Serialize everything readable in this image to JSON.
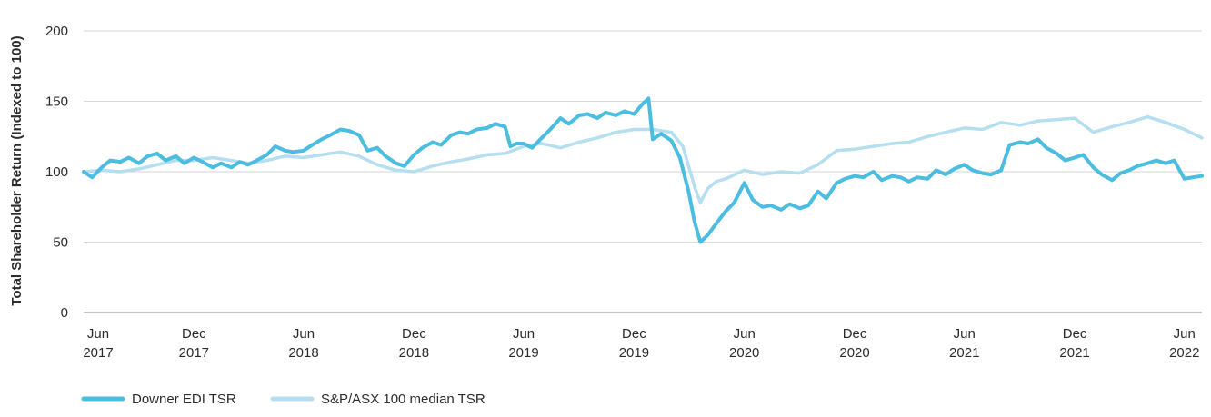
{
  "chart_data": {
    "type": "line",
    "title": "",
    "ylabel": "Total Shareholder Return (Indexed to 100)",
    "xlabel": "",
    "ylim": [
      0,
      200
    ],
    "yticks": [
      0,
      50,
      100,
      150,
      200
    ],
    "xlim": [
      "2017-06-01",
      "2022-06-30"
    ],
    "xticks": [
      {
        "date": "2017-06-01",
        "month": "Jun",
        "year": "2017"
      },
      {
        "date": "2017-12-01",
        "month": "Dec",
        "year": "2017"
      },
      {
        "date": "2018-06-01",
        "month": "Jun",
        "year": "2018"
      },
      {
        "date": "2018-12-01",
        "month": "Dec",
        "year": "2018"
      },
      {
        "date": "2019-06-01",
        "month": "Jun",
        "year": "2019"
      },
      {
        "date": "2019-12-01",
        "month": "Dec",
        "year": "2019"
      },
      {
        "date": "2020-06-01",
        "month": "Jun",
        "year": "2020"
      },
      {
        "date": "2020-12-01",
        "month": "Dec",
        "year": "2020"
      },
      {
        "date": "2021-06-01",
        "month": "Jun",
        "year": "2021"
      },
      {
        "date": "2021-12-01",
        "month": "Dec",
        "year": "2021"
      },
      {
        "date": "2022-06-01",
        "month": "Jun",
        "year": "2022"
      }
    ],
    "grid": "horizontal",
    "legend_position": "bottom-left",
    "series": [
      {
        "name": "Downer EDI TSR",
        "color": "#4bbde0",
        "points": [
          [
            "2017-06-01",
            100
          ],
          [
            "2017-06-15",
            96
          ],
          [
            "2017-07-01",
            103
          ],
          [
            "2017-07-15",
            108
          ],
          [
            "2017-08-01",
            107
          ],
          [
            "2017-08-15",
            110
          ],
          [
            "2017-09-01",
            106
          ],
          [
            "2017-09-15",
            111
          ],
          [
            "2017-10-01",
            113
          ],
          [
            "2017-10-15",
            108
          ],
          [
            "2017-11-01",
            111
          ],
          [
            "2017-11-15",
            106
          ],
          [
            "2017-12-01",
            110
          ],
          [
            "2017-12-15",
            107
          ],
          [
            "2018-01-01",
            103
          ],
          [
            "2018-01-15",
            106
          ],
          [
            "2018-02-01",
            103
          ],
          [
            "2018-02-15",
            107
          ],
          [
            "2018-03-01",
            105
          ],
          [
            "2018-03-15",
            108
          ],
          [
            "2018-04-01",
            112
          ],
          [
            "2018-04-15",
            118
          ],
          [
            "2018-05-01",
            115
          ],
          [
            "2018-05-15",
            114
          ],
          [
            "2018-06-01",
            115
          ],
          [
            "2018-06-15",
            119
          ],
          [
            "2018-07-01",
            123
          ],
          [
            "2018-07-15",
            126
          ],
          [
            "2018-08-01",
            130
          ],
          [
            "2018-08-15",
            129
          ],
          [
            "2018-09-01",
            126
          ],
          [
            "2018-09-15",
            115
          ],
          [
            "2018-10-01",
            117
          ],
          [
            "2018-10-15",
            111
          ],
          [
            "2018-11-01",
            106
          ],
          [
            "2018-11-15",
            104
          ],
          [
            "2018-12-01",
            112
          ],
          [
            "2018-12-15",
            117
          ],
          [
            "2019-01-01",
            121
          ],
          [
            "2019-01-15",
            119
          ],
          [
            "2019-02-01",
            126
          ],
          [
            "2019-02-15",
            128
          ],
          [
            "2019-03-01",
            127
          ],
          [
            "2019-03-15",
            130
          ],
          [
            "2019-04-01",
            131
          ],
          [
            "2019-04-15",
            134
          ],
          [
            "2019-05-01",
            132
          ],
          [
            "2019-05-10",
            118
          ],
          [
            "2019-05-20",
            120
          ],
          [
            "2019-06-01",
            120
          ],
          [
            "2019-06-15",
            117
          ],
          [
            "2019-07-01",
            124
          ],
          [
            "2019-07-15",
            130
          ],
          [
            "2019-08-01",
            138
          ],
          [
            "2019-08-15",
            134
          ],
          [
            "2019-09-01",
            140
          ],
          [
            "2019-09-15",
            141
          ],
          [
            "2019-10-01",
            138
          ],
          [
            "2019-10-15",
            142
          ],
          [
            "2019-11-01",
            140
          ],
          [
            "2019-11-15",
            143
          ],
          [
            "2019-12-01",
            141
          ],
          [
            "2019-12-15",
            148
          ],
          [
            "2019-12-25",
            152
          ],
          [
            "2020-01-01",
            123
          ],
          [
            "2020-01-15",
            127
          ],
          [
            "2020-02-01",
            122
          ],
          [
            "2020-02-15",
            110
          ],
          [
            "2020-03-01",
            85
          ],
          [
            "2020-03-10",
            65
          ],
          [
            "2020-03-20",
            50
          ],
          [
            "2020-04-01",
            55
          ],
          [
            "2020-04-15",
            63
          ],
          [
            "2020-05-01",
            72
          ],
          [
            "2020-05-15",
            78
          ],
          [
            "2020-06-01",
            92
          ],
          [
            "2020-06-15",
            80
          ],
          [
            "2020-07-01",
            75
          ],
          [
            "2020-07-15",
            76
          ],
          [
            "2020-08-01",
            73
          ],
          [
            "2020-08-15",
            77
          ],
          [
            "2020-09-01",
            74
          ],
          [
            "2020-09-15",
            76
          ],
          [
            "2020-10-01",
            86
          ],
          [
            "2020-10-15",
            81
          ],
          [
            "2020-11-01",
            92
          ],
          [
            "2020-11-15",
            95
          ],
          [
            "2020-12-01",
            97
          ],
          [
            "2020-12-15",
            96
          ],
          [
            "2021-01-01",
            100
          ],
          [
            "2021-01-15",
            94
          ],
          [
            "2021-02-01",
            97
          ],
          [
            "2021-02-15",
            96
          ],
          [
            "2021-03-01",
            93
          ],
          [
            "2021-03-15",
            96
          ],
          [
            "2021-04-01",
            95
          ],
          [
            "2021-04-15",
            101
          ],
          [
            "2021-05-01",
            98
          ],
          [
            "2021-05-15",
            102
          ],
          [
            "2021-06-01",
            105
          ],
          [
            "2021-06-15",
            101
          ],
          [
            "2021-07-01",
            99
          ],
          [
            "2021-07-15",
            98
          ],
          [
            "2021-08-01",
            101
          ],
          [
            "2021-08-15",
            119
          ],
          [
            "2021-09-01",
            121
          ],
          [
            "2021-09-15",
            120
          ],
          [
            "2021-10-01",
            123
          ],
          [
            "2021-10-15",
            117
          ],
          [
            "2021-11-01",
            113
          ],
          [
            "2021-11-15",
            108
          ],
          [
            "2021-12-01",
            110
          ],
          [
            "2021-12-15",
            112
          ],
          [
            "2022-01-01",
            103
          ],
          [
            "2022-01-15",
            98
          ],
          [
            "2022-02-01",
            94
          ],
          [
            "2022-02-15",
            99
          ],
          [
            "2022-03-01",
            101
          ],
          [
            "2022-03-15",
            104
          ],
          [
            "2022-04-01",
            106
          ],
          [
            "2022-04-15",
            108
          ],
          [
            "2022-05-01",
            106
          ],
          [
            "2022-05-15",
            108
          ],
          [
            "2022-06-01",
            95
          ],
          [
            "2022-06-15",
            96
          ],
          [
            "2022-06-30",
            97
          ]
        ]
      },
      {
        "name": "S&P/ASX 100 median TSR",
        "color": "#b5def1",
        "points": [
          [
            "2017-06-01",
            100
          ],
          [
            "2017-07-01",
            101
          ],
          [
            "2017-08-01",
            100
          ],
          [
            "2017-09-01",
            102
          ],
          [
            "2017-10-01",
            105
          ],
          [
            "2017-11-01",
            108
          ],
          [
            "2017-12-01",
            108
          ],
          [
            "2018-01-01",
            110
          ],
          [
            "2018-02-01",
            108
          ],
          [
            "2018-03-01",
            106
          ],
          [
            "2018-04-01",
            108
          ],
          [
            "2018-05-01",
            111
          ],
          [
            "2018-06-01",
            110
          ],
          [
            "2018-07-01",
            112
          ],
          [
            "2018-08-01",
            114
          ],
          [
            "2018-09-01",
            111
          ],
          [
            "2018-10-01",
            105
          ],
          [
            "2018-11-01",
            101
          ],
          [
            "2018-12-01",
            100
          ],
          [
            "2019-01-01",
            104
          ],
          [
            "2019-02-01",
            107
          ],
          [
            "2019-03-01",
            109
          ],
          [
            "2019-04-01",
            112
          ],
          [
            "2019-05-01",
            113
          ],
          [
            "2019-06-01",
            118
          ],
          [
            "2019-07-01",
            120
          ],
          [
            "2019-08-01",
            117
          ],
          [
            "2019-09-01",
            121
          ],
          [
            "2019-10-01",
            124
          ],
          [
            "2019-11-01",
            128
          ],
          [
            "2019-12-01",
            130
          ],
          [
            "2020-01-01",
            130
          ],
          [
            "2020-02-01",
            128
          ],
          [
            "2020-02-20",
            118
          ],
          [
            "2020-03-10",
            90
          ],
          [
            "2020-03-20",
            78
          ],
          [
            "2020-04-01",
            88
          ],
          [
            "2020-04-15",
            93
          ],
          [
            "2020-05-01",
            95
          ],
          [
            "2020-06-01",
            101
          ],
          [
            "2020-07-01",
            98
          ],
          [
            "2020-08-01",
            100
          ],
          [
            "2020-09-01",
            99
          ],
          [
            "2020-10-01",
            105
          ],
          [
            "2020-11-01",
            115
          ],
          [
            "2020-12-01",
            116
          ],
          [
            "2021-01-01",
            118
          ],
          [
            "2021-02-01",
            120
          ],
          [
            "2021-03-01",
            121
          ],
          [
            "2021-04-01",
            125
          ],
          [
            "2021-05-01",
            128
          ],
          [
            "2021-06-01",
            131
          ],
          [
            "2021-07-01",
            130
          ],
          [
            "2021-08-01",
            135
          ],
          [
            "2021-09-01",
            133
          ],
          [
            "2021-10-01",
            136
          ],
          [
            "2021-11-01",
            137
          ],
          [
            "2021-12-01",
            138
          ],
          [
            "2022-01-01",
            128
          ],
          [
            "2022-02-01",
            132
          ],
          [
            "2022-03-01",
            135
          ],
          [
            "2022-04-01",
            139
          ],
          [
            "2022-05-01",
            135
          ],
          [
            "2022-06-01",
            130
          ],
          [
            "2022-06-30",
            124
          ]
        ]
      }
    ]
  }
}
